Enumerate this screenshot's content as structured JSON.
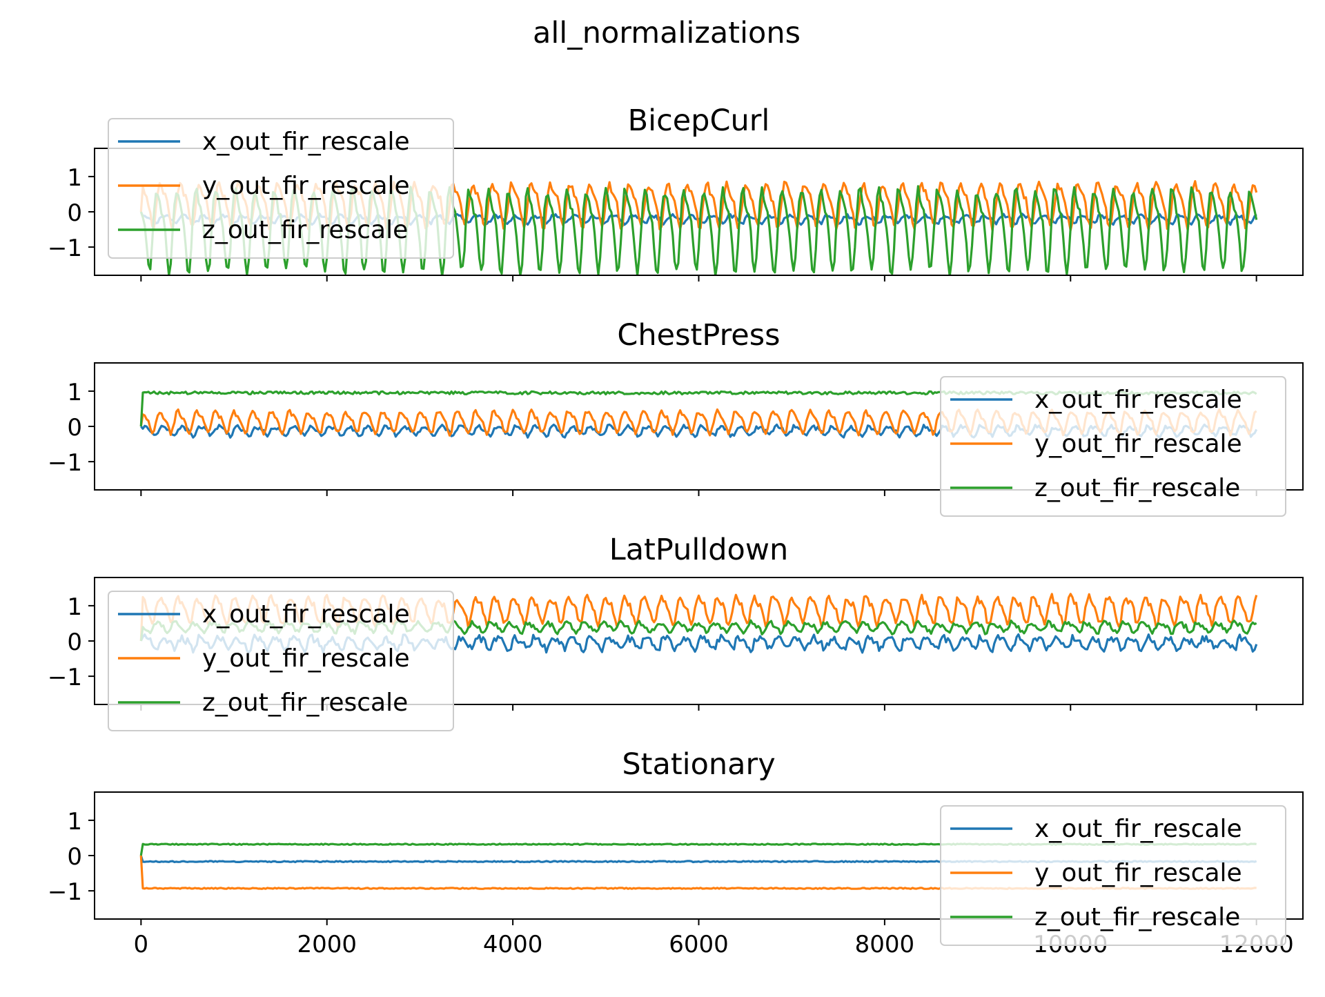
{
  "figure": {
    "suptitle": "all_normalizations"
  },
  "chart_data": [
    {
      "type": "line",
      "title": "BicepCurl",
      "legend_position": "upper left",
      "xlim": [
        -500,
        12500
      ],
      "ylim": [
        -1.8,
        1.8
      ],
      "yticks": [
        -1,
        0,
        1
      ],
      "series": [
        {
          "name": "x_out_fir_rescale",
          "color": "#1f77b4",
          "pattern": "periodic",
          "base": -0.2,
          "amplitude": 0.1,
          "period": 210,
          "noise": 0.05,
          "x_start": 0,
          "x_end": 12000
        },
        {
          "name": "y_out_fir_rescale",
          "color": "#ff7f0e",
          "pattern": "periodic",
          "base": 0.25,
          "amplitude": 0.55,
          "period": 210,
          "noise": 0.1,
          "x_start": 0,
          "x_end": 12000
        },
        {
          "name": "z_out_fir_rescale",
          "color": "#2ca02c",
          "pattern": "periodic",
          "base": -0.4,
          "amplitude": 1.05,
          "period": 210,
          "noise": 0.12,
          "x_start": 0,
          "x_end": 12000
        }
      ]
    },
    {
      "type": "line",
      "title": "ChestPress",
      "legend_position": "center right",
      "xlim": [
        -500,
        12500
      ],
      "ylim": [
        -1.8,
        1.8
      ],
      "yticks": [
        -1,
        0,
        1
      ],
      "series": [
        {
          "name": "x_out_fir_rescale",
          "color": "#1f77b4",
          "pattern": "periodic",
          "base": -0.12,
          "amplitude": 0.12,
          "period": 200,
          "noise": 0.06,
          "x_start": 0,
          "x_end": 12000
        },
        {
          "name": "y_out_fir_rescale",
          "color": "#ff7f0e",
          "pattern": "periodic",
          "base": 0.15,
          "amplitude": 0.28,
          "period": 200,
          "noise": 0.06,
          "x_start": 0,
          "x_end": 12000
        },
        {
          "name": "z_out_fir_rescale",
          "color": "#2ca02c",
          "pattern": "flat",
          "base": 0.95,
          "amplitude": 0.0,
          "period": 200,
          "noise": 0.04,
          "x_start": 0,
          "x_end": 12000
        }
      ]
    },
    {
      "type": "line",
      "title": "LatPulldown",
      "legend_position": "center left",
      "xlim": [
        -500,
        12500
      ],
      "ylim": [
        -1.8,
        1.8
      ],
      "yticks": [
        -1,
        0,
        1
      ],
      "series": [
        {
          "name": "x_out_fir_rescale",
          "color": "#1f77b4",
          "pattern": "periodic",
          "base": -0.05,
          "amplitude": 0.15,
          "period": 200,
          "noise": 0.1,
          "x_start": 0,
          "x_end": 12000
        },
        {
          "name": "y_out_fir_rescale",
          "color": "#ff7f0e",
          "pattern": "periodic",
          "base": 0.9,
          "amplitude": 0.35,
          "period": 200,
          "noise": 0.1,
          "x_start": 0,
          "x_end": 12000
        },
        {
          "name": "z_out_fir_rescale",
          "color": "#2ca02c",
          "pattern": "periodic",
          "base": 0.4,
          "amplitude": 0.12,
          "period": 200,
          "noise": 0.07,
          "x_start": 0,
          "x_end": 12000
        }
      ]
    },
    {
      "type": "line",
      "title": "Stationary",
      "legend_position": "lower right",
      "xlim": [
        -500,
        12500
      ],
      "ylim": [
        -1.8,
        1.8
      ],
      "yticks": [
        -1,
        0,
        1
      ],
      "xticks": [
        0,
        2000,
        4000,
        6000,
        8000,
        10000,
        12000
      ],
      "series": [
        {
          "name": "x_out_fir_rescale",
          "color": "#1f77b4",
          "pattern": "flat",
          "base": -0.17,
          "amplitude": 0.0,
          "period": 200,
          "noise": 0.015,
          "x_start": 0,
          "x_end": 12000
        },
        {
          "name": "y_out_fir_rescale",
          "color": "#ff7f0e",
          "pattern": "flat",
          "base": -0.93,
          "amplitude": 0.0,
          "period": 200,
          "noise": 0.015,
          "x_start": 0,
          "x_end": 12000
        },
        {
          "name": "z_out_fir_rescale",
          "color": "#2ca02c",
          "pattern": "flat",
          "base": 0.32,
          "amplitude": 0.0,
          "period": 200,
          "noise": 0.015,
          "x_start": 0,
          "x_end": 12000
        }
      ]
    }
  ]
}
